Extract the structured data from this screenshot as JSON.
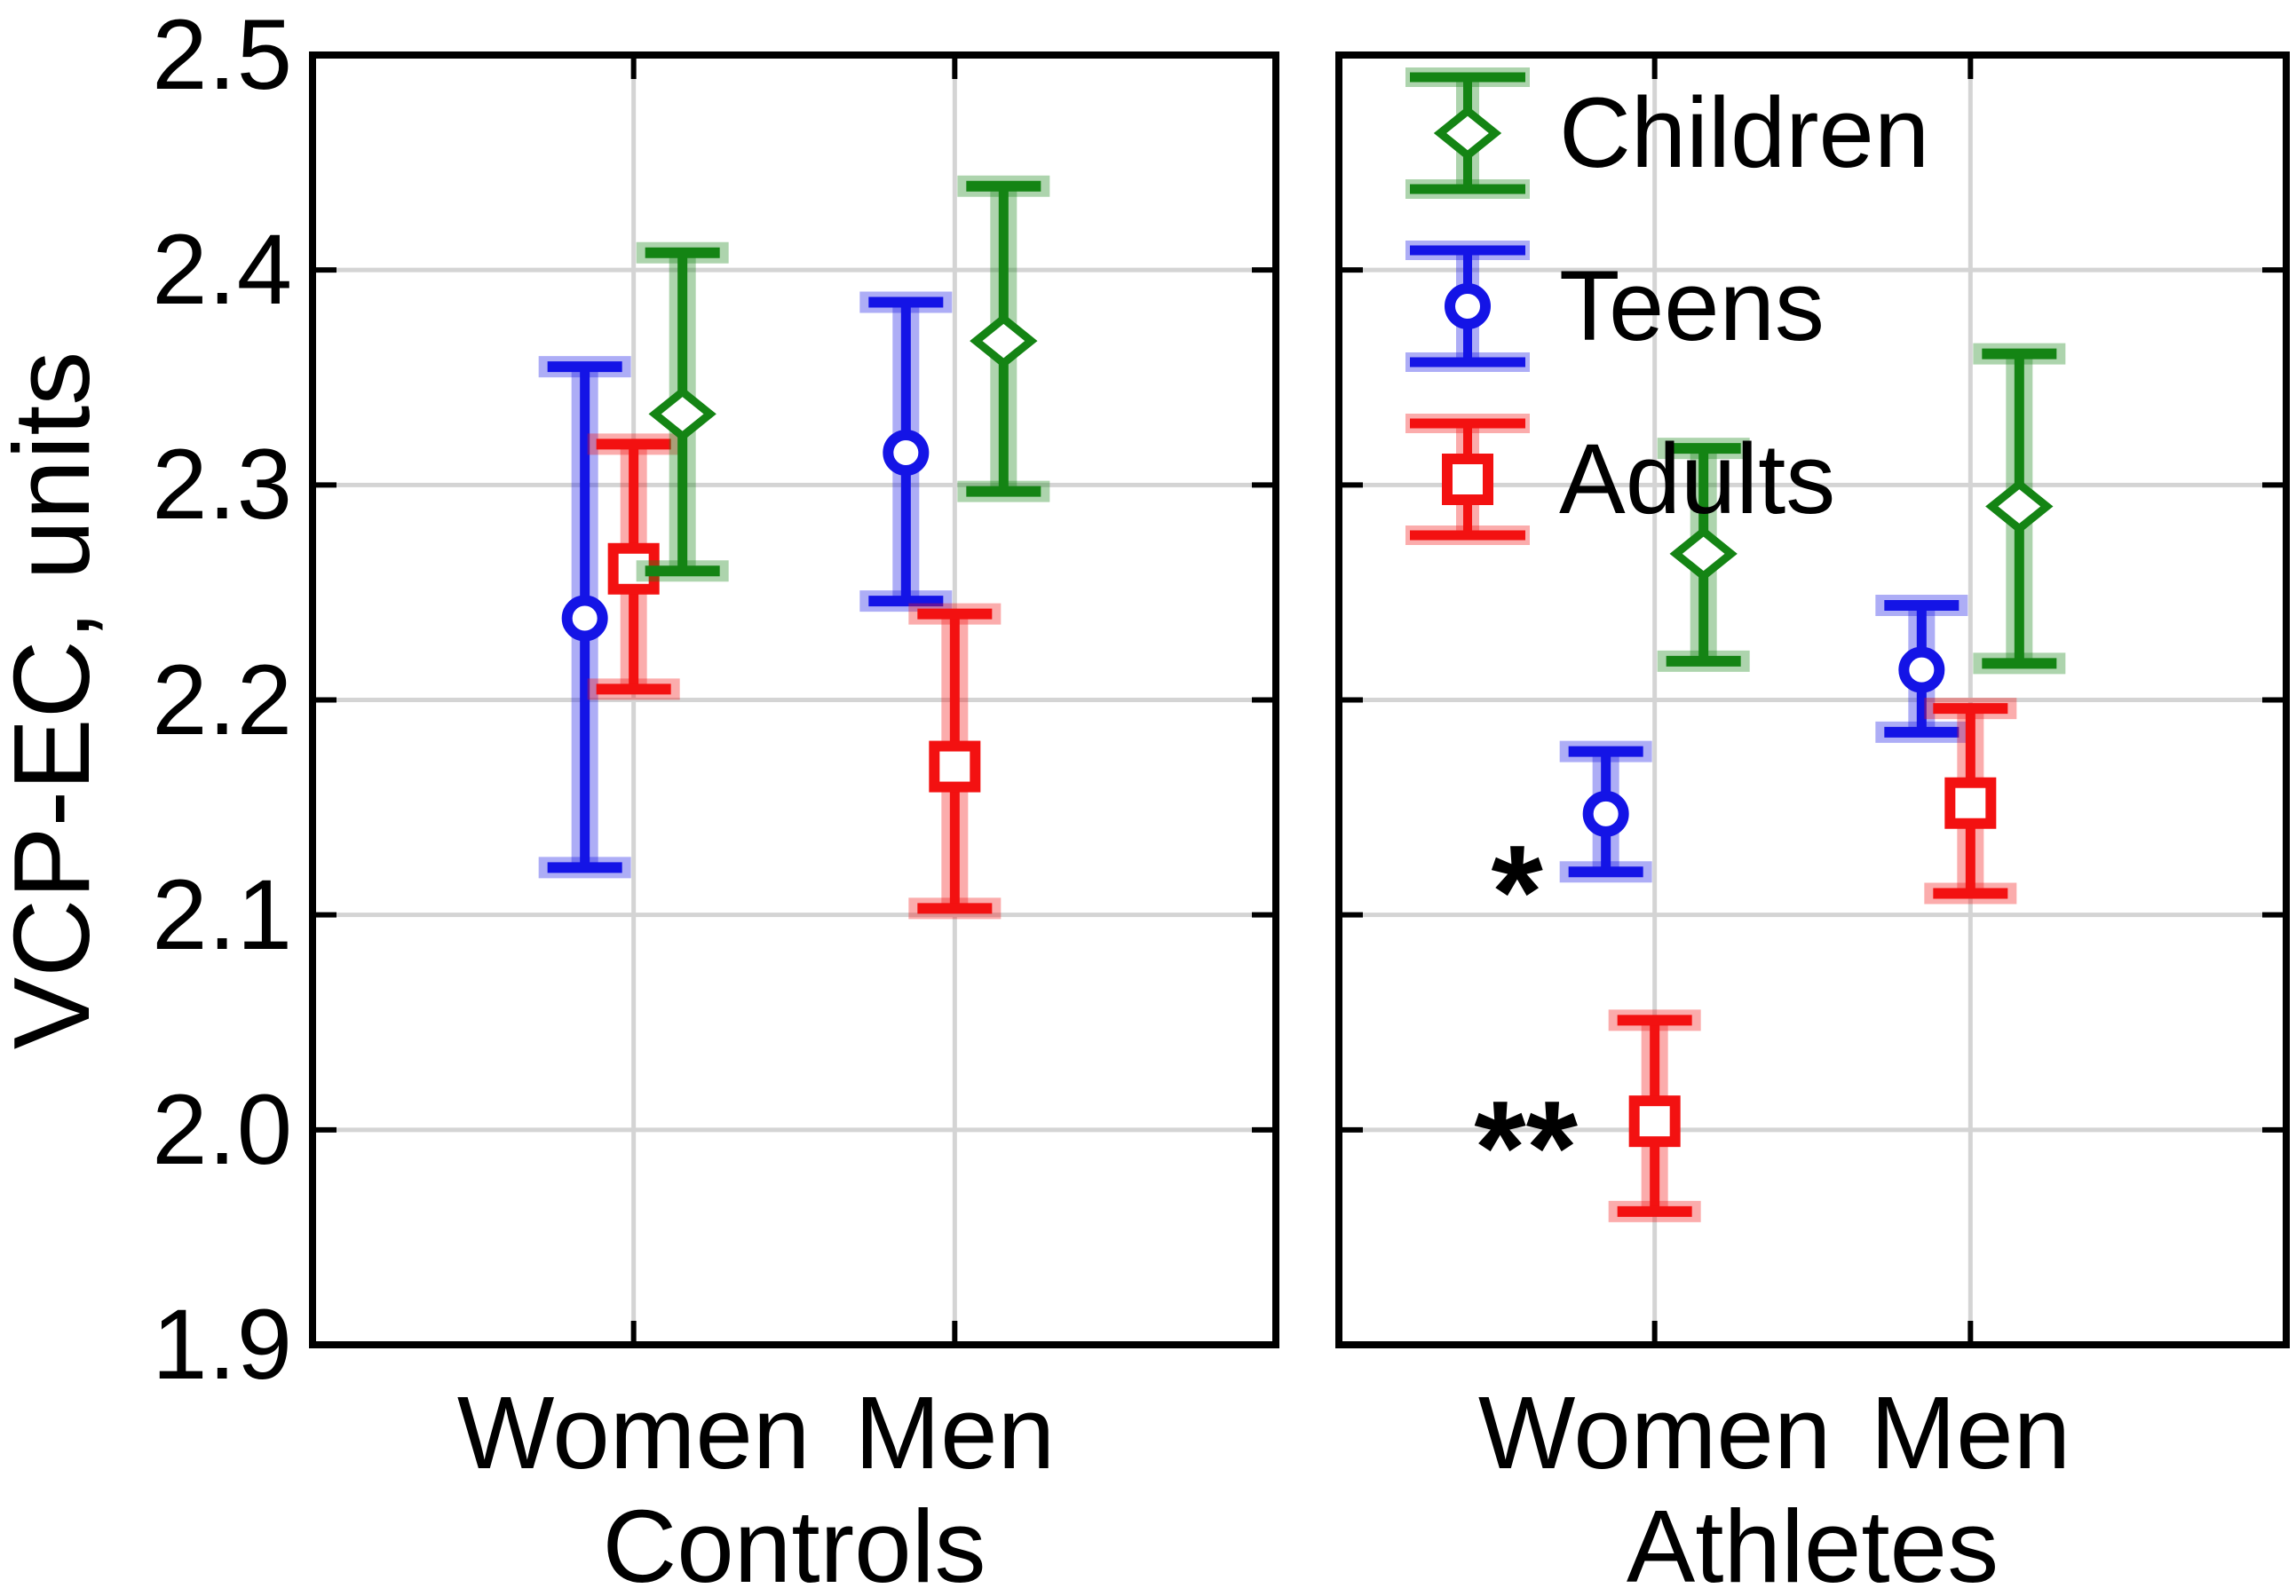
{
  "chart_data": {
    "type": "errorbar",
    "title": "",
    "ylabel": "VCP-EC, units",
    "xlabel": "",
    "ylim": [
      1.9,
      2.5
    ],
    "yticks": [
      "2.5",
      "2.4",
      "2.3",
      "2.2",
      "2.1",
      "2.0",
      "1.9"
    ],
    "grid": true,
    "legend_position": "top-left-of-right-panel",
    "colors": {
      "children": "#148414",
      "teens": "#1414e6",
      "adults": "#f31111",
      "gridline": "#d4d4d4",
      "frame": "#000000"
    },
    "legend": [
      {
        "label": "Children",
        "marker": "diamond",
        "color": "#148414"
      },
      {
        "label": "Teens",
        "marker": "circle",
        "color": "#1414e6"
      },
      {
        "label": "Adults",
        "marker": "square",
        "color": "#f31111"
      }
    ],
    "panels": [
      {
        "title": "Controls",
        "categories": [
          "Women",
          "Men"
        ],
        "series": [
          {
            "name": "Children",
            "marker": "diamond",
            "color": "#148414",
            "points": [
              {
                "mean": 2.333,
                "lo": 2.26,
                "hi": 2.408
              },
              {
                "mean": 2.367,
                "lo": 2.297,
                "hi": 2.439
              }
            ]
          },
          {
            "name": "Teens",
            "marker": "circle",
            "color": "#1414e6",
            "points": [
              {
                "mean": 2.238,
                "lo": 2.122,
                "hi": 2.355
              },
              {
                "mean": 2.315,
                "lo": 2.246,
                "hi": 2.385
              }
            ]
          },
          {
            "name": "Adults",
            "marker": "square",
            "color": "#f31111",
            "points": [
              {
                "mean": 2.261,
                "lo": 2.205,
                "hi": 2.319
              },
              {
                "mean": 2.169,
                "lo": 2.103,
                "hi": 2.24
              }
            ]
          }
        ],
        "annotations": []
      },
      {
        "title": "Athletes",
        "categories": [
          "Women",
          "Men"
        ],
        "series": [
          {
            "name": "Children",
            "marker": "diamond",
            "color": "#148414",
            "points": [
              {
                "mean": 2.268,
                "lo": 2.218,
                "hi": 2.317
              },
              {
                "mean": 2.29,
                "lo": 2.217,
                "hi": 2.361
              }
            ]
          },
          {
            "name": "Teens",
            "marker": "circle",
            "color": "#1414e6",
            "points": [
              {
                "mean": 2.147,
                "lo": 2.12,
                "hi": 2.176
              },
              {
                "mean": 2.214,
                "lo": 2.185,
                "hi": 2.244
              }
            ]
          },
          {
            "name": "Adults",
            "marker": "square",
            "color": "#f31111",
            "points": [
              {
                "mean": 2.004,
                "lo": 1.962,
                "hi": 2.051
              },
              {
                "mean": 2.152,
                "lo": 2.11,
                "hi": 2.196
              }
            ]
          }
        ],
        "annotations": [
          {
            "text": "*",
            "category": "Women",
            "series": "Teens",
            "value": 2.12
          },
          {
            "text": "**",
            "category": "Women",
            "series": "Adults",
            "value": 2.001
          }
        ]
      }
    ]
  }
}
